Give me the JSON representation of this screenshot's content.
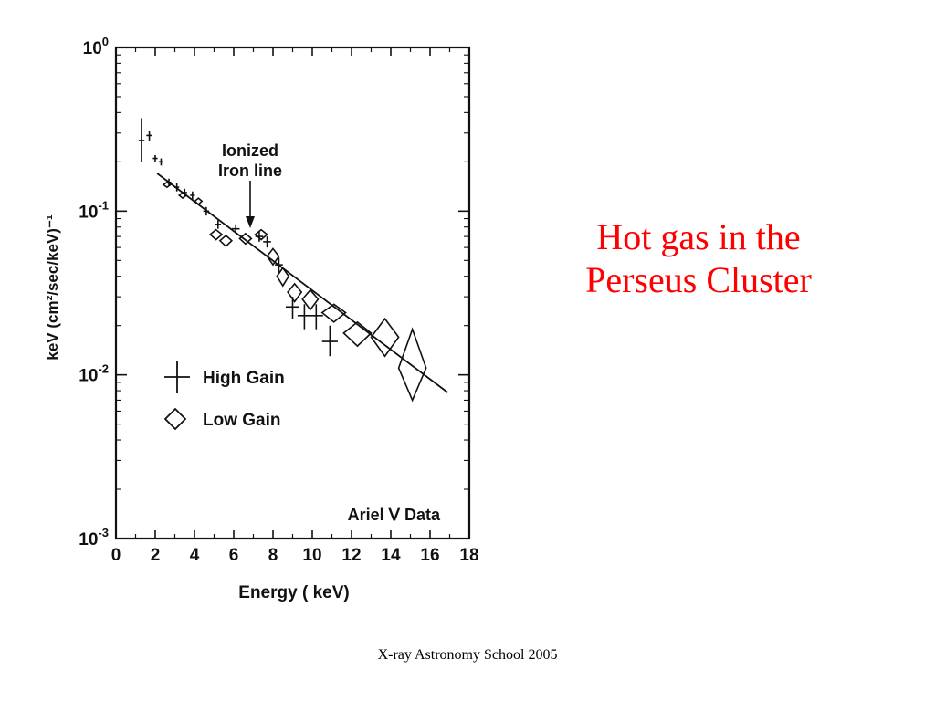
{
  "slide": {
    "title_line1": "Hot gas in the",
    "title_line2": "Perseus Cluster",
    "footer": "X-ray Astronomy School 2005",
    "title_color": "#ff0000"
  },
  "chart_data": {
    "type": "scatter",
    "title": "",
    "xlabel": "Energy ( keV)",
    "ylabel": "keV (cm²/sec/keV)⁻¹",
    "xlim": [
      0,
      18
    ],
    "ylim": [
      0.001,
      1
    ],
    "y_scale": "log",
    "x_ticks": [
      "0",
      "2",
      "4",
      "6",
      "8",
      "10",
      "12",
      "14",
      "16",
      "18"
    ],
    "y_ticks": [
      {
        "base": "10",
        "exp": "0",
        "value": 1
      },
      {
        "base": "10",
        "exp": "-1",
        "value": 0.1
      },
      {
        "base": "10",
        "exp": "-2",
        "value": 0.01
      },
      {
        "base": "10",
        "exp": "-3",
        "value": 0.001
      }
    ],
    "annotation": {
      "line1": "Ionized",
      "line2": "Iron line",
      "x": 6.9,
      "y": 0.074
    },
    "data_source_label": "Ariel Ⅴ Data",
    "legend_position": "lower-left",
    "fit_line": {
      "x": [
        2.1,
        16.9
      ],
      "y": [
        0.17,
        0.0078
      ]
    },
    "series": [
      {
        "name": "High Gain",
        "marker": "cross",
        "points": [
          {
            "x": 1.3,
            "y": 0.27,
            "xerr": 0.15,
            "yerr_lo": 0.07,
            "yerr_hi": 0.1
          },
          {
            "x": 1.7,
            "y": 0.29,
            "xerr": 0.15,
            "yerr_lo": 0.02,
            "yerr_hi": 0.02
          },
          {
            "x": 2.0,
            "y": 0.21,
            "xerr": 0.12,
            "yerr_lo": 0.01,
            "yerr_hi": 0.01
          },
          {
            "x": 2.3,
            "y": 0.2,
            "xerr": 0.12,
            "yerr_lo": 0.01,
            "yerr_hi": 0.01
          },
          {
            "x": 2.7,
            "y": 0.15,
            "xerr": 0.12,
            "yerr_lo": 0.008,
            "yerr_hi": 0.008
          },
          {
            "x": 3.1,
            "y": 0.14,
            "xerr": 0.12,
            "yerr_lo": 0.008,
            "yerr_hi": 0.008
          },
          {
            "x": 3.5,
            "y": 0.13,
            "xerr": 0.12,
            "yerr_lo": 0.007,
            "yerr_hi": 0.007
          },
          {
            "x": 3.9,
            "y": 0.125,
            "xerr": 0.12,
            "yerr_lo": 0.007,
            "yerr_hi": 0.007
          },
          {
            "x": 4.6,
            "y": 0.1,
            "xerr": 0.15,
            "yerr_lo": 0.006,
            "yerr_hi": 0.006
          },
          {
            "x": 5.2,
            "y": 0.083,
            "xerr": 0.15,
            "yerr_lo": 0.005,
            "yerr_hi": 0.005
          },
          {
            "x": 6.1,
            "y": 0.078,
            "xerr": 0.2,
            "yerr_lo": 0.005,
            "yerr_hi": 0.005
          },
          {
            "x": 7.3,
            "y": 0.07,
            "xerr": 0.2,
            "yerr_lo": 0.005,
            "yerr_hi": 0.005
          },
          {
            "x": 7.7,
            "y": 0.065,
            "xerr": 0.2,
            "yerr_lo": 0.005,
            "yerr_hi": 0.005
          },
          {
            "x": 8.3,
            "y": 0.047,
            "xerr": 0.2,
            "yerr_lo": 0.005,
            "yerr_hi": 0.005
          },
          {
            "x": 9.0,
            "y": 0.026,
            "xerr": 0.35,
            "yerr_lo": 0.004,
            "yerr_hi": 0.004
          },
          {
            "x": 9.6,
            "y": 0.023,
            "xerr": 0.35,
            "yerr_lo": 0.004,
            "yerr_hi": 0.004
          },
          {
            "x": 10.2,
            "y": 0.023,
            "xerr": 0.35,
            "yerr_lo": 0.004,
            "yerr_hi": 0.004
          },
          {
            "x": 10.9,
            "y": 0.016,
            "xerr": 0.4,
            "yerr_lo": 0.003,
            "yerr_hi": 0.004
          }
        ]
      },
      {
        "name": "Low Gain",
        "marker": "diamond",
        "points": [
          {
            "x": 2.6,
            "y": 0.145,
            "xerr": 0.18,
            "yerr_lo": 0.005,
            "yerr_hi": 0.005
          },
          {
            "x": 3.4,
            "y": 0.125,
            "xerr": 0.18,
            "yerr_lo": 0.005,
            "yerr_hi": 0.005
          },
          {
            "x": 4.2,
            "y": 0.115,
            "xerr": 0.18,
            "yerr_lo": 0.005,
            "yerr_hi": 0.005
          },
          {
            "x": 5.1,
            "y": 0.072,
            "xerr": 0.3,
            "yerr_lo": 0.005,
            "yerr_hi": 0.005
          },
          {
            "x": 5.6,
            "y": 0.066,
            "xerr": 0.3,
            "yerr_lo": 0.005,
            "yerr_hi": 0.005
          },
          {
            "x": 6.6,
            "y": 0.068,
            "xerr": 0.3,
            "yerr_lo": 0.005,
            "yerr_hi": 0.005
          },
          {
            "x": 7.4,
            "y": 0.072,
            "xerr": 0.3,
            "yerr_lo": 0.005,
            "yerr_hi": 0.005
          },
          {
            "x": 8.0,
            "y": 0.053,
            "xerr": 0.3,
            "yerr_lo": 0.006,
            "yerr_hi": 0.006
          },
          {
            "x": 8.5,
            "y": 0.04,
            "xerr": 0.3,
            "yerr_lo": 0.005,
            "yerr_hi": 0.005
          },
          {
            "x": 9.1,
            "y": 0.032,
            "xerr": 0.35,
            "yerr_lo": 0.004,
            "yerr_hi": 0.004
          },
          {
            "x": 9.9,
            "y": 0.029,
            "xerr": 0.4,
            "yerr_lo": 0.004,
            "yerr_hi": 0.004
          },
          {
            "x": 11.1,
            "y": 0.024,
            "xerr": 0.6,
            "yerr_lo": 0.003,
            "yerr_hi": 0.003
          },
          {
            "x": 12.3,
            "y": 0.018,
            "xerr": 0.7,
            "yerr_lo": 0.003,
            "yerr_hi": 0.003
          },
          {
            "x": 13.7,
            "y": 0.017,
            "xerr": 0.7,
            "yerr_lo": 0.004,
            "yerr_hi": 0.005
          },
          {
            "x": 15.1,
            "y": 0.011,
            "xerr": 0.7,
            "yerr_lo": 0.004,
            "yerr_hi": 0.008
          }
        ]
      }
    ]
  }
}
